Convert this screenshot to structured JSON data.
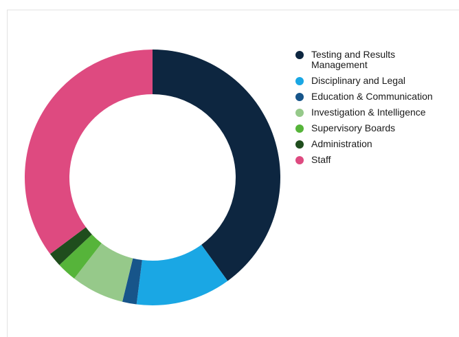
{
  "chart_data": {
    "type": "pie",
    "title": "",
    "legend_position": "right",
    "categories": [
      "Testing and Results Management",
      "Disciplinary and Legal",
      "Education & Communication",
      "Investigation & Intelligence",
      "Supervisory Boards",
      "Administration",
      "Staff"
    ],
    "values": [
      40.0,
      12.0,
      1.8,
      6.7,
      2.5,
      1.8,
      35.2
    ],
    "colors": [
      "#0d2640",
      "#1aa7e4",
      "#17558a",
      "#96c98a",
      "#56b43a",
      "#1f4d1d",
      "#de4a80"
    ]
  },
  "legend": [
    {
      "label": "Testing and Results Management",
      "color": "#0d2640"
    },
    {
      "label": "Disciplinary and Legal",
      "color": "#1aa7e4"
    },
    {
      "label": "Education & Communication",
      "color": "#17558a"
    },
    {
      "label": "Investigation & Intelligence",
      "color": "#96c98a"
    },
    {
      "label": "Supervisory Boards",
      "color": "#56b43a"
    },
    {
      "label": "Administration",
      "color": "#1f4d1d"
    },
    {
      "label": "Staff",
      "color": "#de4a80"
    }
  ]
}
